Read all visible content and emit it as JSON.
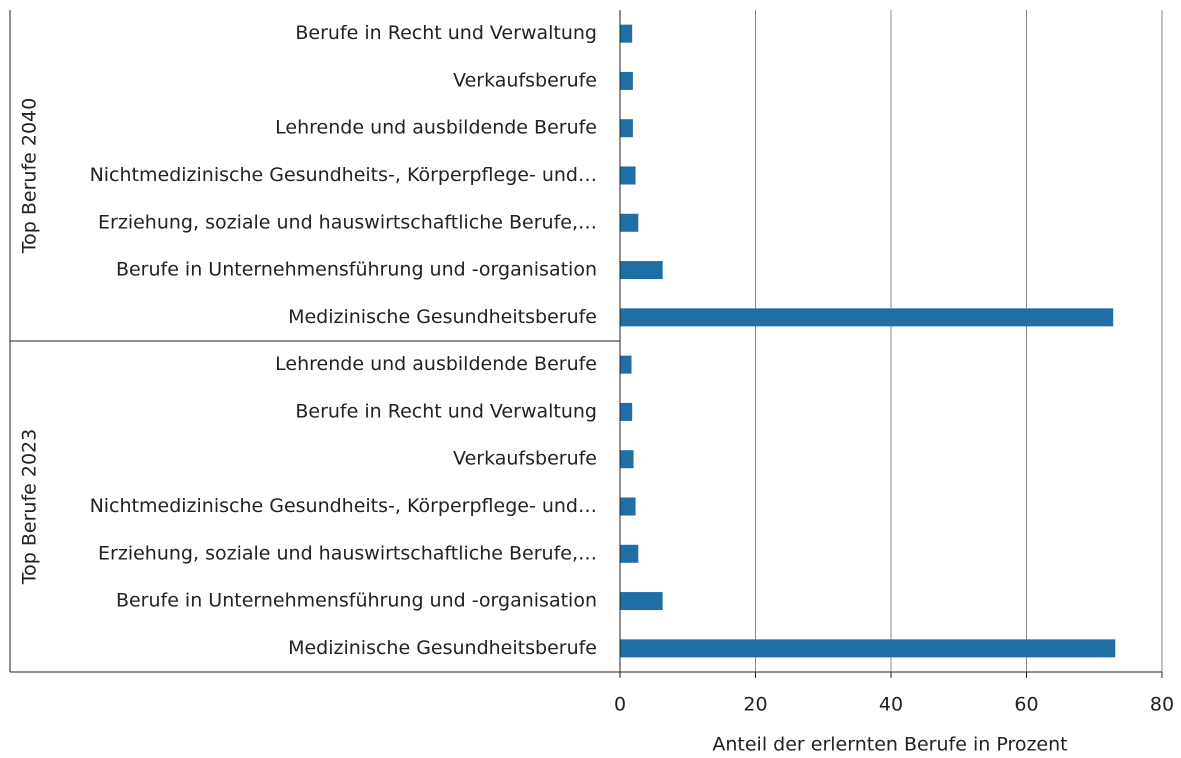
{
  "chart_data": {
    "type": "bar",
    "orientation": "horizontal",
    "color": "#1f6fa5",
    "x_label": "Anteil der erlernten Berufe in Prozent",
    "xlim": [
      0,
      80
    ],
    "xticks": [
      0,
      20,
      40,
      60,
      80
    ],
    "grid": true,
    "groups": [
      {
        "name": "Top Berufe 2040",
        "categories": [
          "Berufe in Recht und Verwaltung",
          "Verkaufsberufe",
          "Lehrende und ausbildende Berufe",
          "Nichtmedizinische Gesundheits-, Körperpflege- und…",
          "Erziehung, soziale und hauswirtschaftliche Berufe,…",
          "Berufe in Unternehmensführung und -organisation",
          "Medizinische Gesundheitsberufe"
        ],
        "values": [
          1.8,
          1.9,
          1.9,
          2.3,
          2.7,
          6.3,
          72.8
        ]
      },
      {
        "name": "Top Berufe 2023",
        "categories": [
          "Lehrende und ausbildende Berufe",
          "Berufe in Recht und Verwaltung",
          "Verkaufsberufe",
          "Nichtmedizinische Gesundheits-, Körperpflege- und…",
          "Erziehung, soziale und hauswirtschaftliche Berufe,…",
          "Berufe in Unternehmensführung und -organisation",
          "Medizinische Gesundheitsberufe"
        ],
        "values": [
          1.7,
          1.8,
          2.0,
          2.3,
          2.7,
          6.3,
          73.1
        ]
      }
    ]
  }
}
